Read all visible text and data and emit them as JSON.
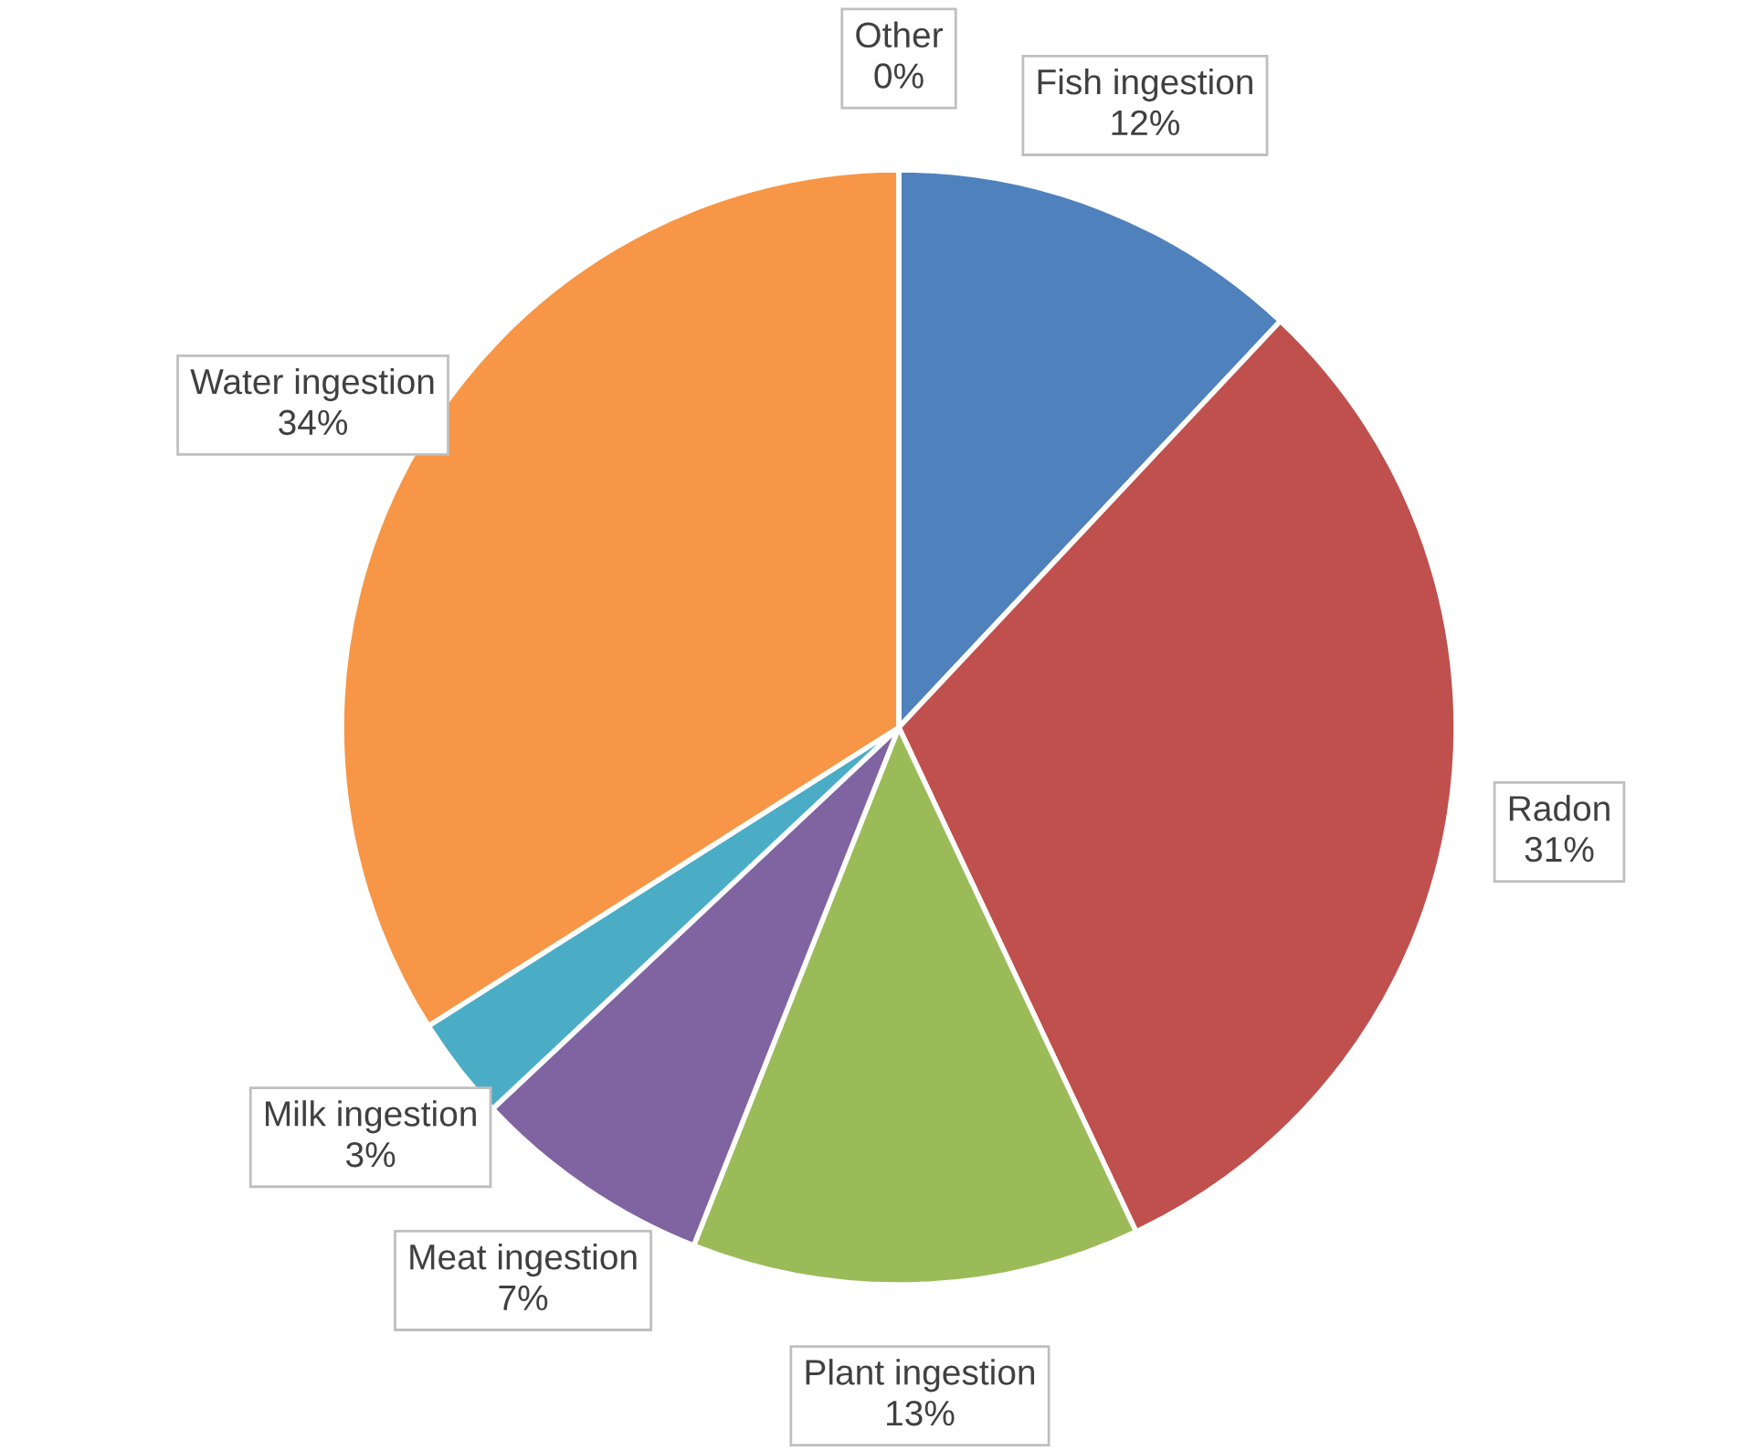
{
  "chart_data": {
    "type": "pie",
    "categories": [
      "Fish ingestion",
      "Radon",
      "Plant ingestion",
      "Meat ingestion",
      "Milk ingestion",
      "Water ingestion",
      "Other"
    ],
    "values": [
      12,
      31,
      13,
      7,
      3,
      34,
      0
    ],
    "value_labels": [
      "12%",
      "31%",
      "13%",
      "7%",
      "3%",
      "34%",
      "0%"
    ],
    "colors": [
      "#4f81bd",
      "#c0504d",
      "#9bbb59",
      "#8064a2",
      "#4bacc6",
      "#f79646",
      "#2c4d75"
    ],
    "legend": false
  }
}
